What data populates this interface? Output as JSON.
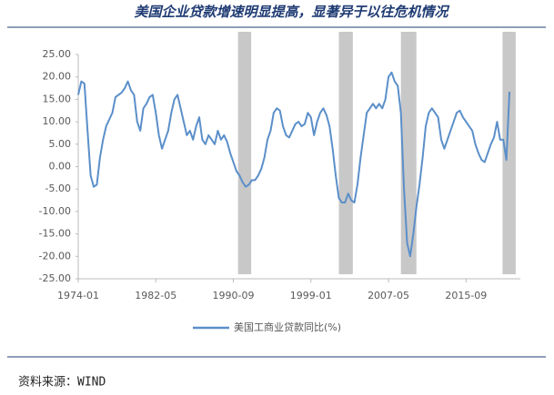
{
  "chart_data": {
    "type": "line",
    "title": "美国企业贷款增速明显提高，显著异于以往危机情况",
    "source": "资料来源：WIND",
    "x": [
      "1974-01",
      "1974-05",
      "1974-09",
      "1975-01",
      "1975-05",
      "1975-09",
      "1976-01",
      "1976-05",
      "1976-09",
      "1977-01",
      "1977-05",
      "1977-09",
      "1978-01",
      "1978-05",
      "1978-09",
      "1979-01",
      "1979-05",
      "1979-09",
      "1980-01",
      "1980-05",
      "1980-09",
      "1981-01",
      "1981-05",
      "1981-09",
      "1982-01",
      "1982-05",
      "1982-09",
      "1983-01",
      "1983-05",
      "1983-09",
      "1984-01",
      "1984-05",
      "1984-09",
      "1985-01",
      "1985-05",
      "1985-09",
      "1986-01",
      "1986-05",
      "1986-09",
      "1987-01",
      "1987-05",
      "1987-09",
      "1988-01",
      "1988-05",
      "1988-09",
      "1989-01",
      "1989-05",
      "1989-09",
      "1990-01",
      "1990-05",
      "1990-09",
      "1991-01",
      "1991-05",
      "1991-09",
      "1992-01",
      "1992-05",
      "1992-09",
      "1993-01",
      "1993-05",
      "1993-09",
      "1994-01",
      "1994-05",
      "1994-09",
      "1995-01",
      "1995-05",
      "1995-09",
      "1996-01",
      "1996-05",
      "1996-09",
      "1997-01",
      "1997-05",
      "1997-09",
      "1998-01",
      "1998-05",
      "1998-09",
      "1999-01",
      "1999-05",
      "1999-09",
      "2000-01",
      "2000-05",
      "2000-09",
      "2001-01",
      "2001-05",
      "2001-09",
      "2002-01",
      "2002-05",
      "2002-09",
      "2003-01",
      "2003-05",
      "2003-09",
      "2004-01",
      "2004-05",
      "2004-09",
      "2005-01",
      "2005-05",
      "2005-09",
      "2006-01",
      "2006-05",
      "2006-09",
      "2007-01",
      "2007-05",
      "2007-09",
      "2008-01",
      "2008-05",
      "2008-09",
      "2009-01",
      "2009-05",
      "2009-09",
      "2010-01",
      "2010-05",
      "2010-09",
      "2011-01",
      "2011-05",
      "2011-09",
      "2012-01",
      "2012-05",
      "2012-09",
      "2013-01",
      "2013-05",
      "2013-09",
      "2014-01",
      "2014-05",
      "2014-09",
      "2015-01",
      "2015-05",
      "2015-09",
      "2016-01",
      "2016-05",
      "2016-09",
      "2017-01",
      "2017-05",
      "2017-09",
      "2018-01",
      "2018-05",
      "2018-09",
      "2019-01",
      "2019-05",
      "2019-09",
      "2020-01",
      "2020-05"
    ],
    "series": [
      {
        "name": "美国工商业贷款同比(%)",
        "color": "#5b8fc9",
        "values": [
          16,
          19,
          18.5,
          8,
          -2,
          -4.5,
          -4,
          2,
          6,
          9,
          10.5,
          12,
          15.5,
          16,
          16.5,
          17.5,
          19,
          17,
          16,
          10,
          8,
          13,
          14,
          15.5,
          16,
          12,
          7,
          4,
          6,
          8,
          12,
          15,
          16,
          13,
          10,
          7,
          8,
          6,
          9,
          11,
          6,
          5,
          7,
          6,
          5,
          8,
          6,
          7,
          5.5,
          3,
          1,
          -1,
          -2,
          -3.5,
          -4.5,
          -4,
          -3,
          -3,
          -2,
          -0.5,
          2,
          6,
          8,
          12,
          13,
          12.5,
          9,
          7,
          6.5,
          8,
          9.5,
          10,
          9,
          9.5,
          12,
          11,
          7,
          10,
          12,
          13,
          11.5,
          9,
          4,
          -2,
          -7,
          -8,
          -8,
          -6,
          -7.5,
          -8,
          -4,
          2,
          7,
          12,
          13,
          14,
          13,
          14,
          13,
          15,
          20,
          21,
          19,
          18,
          12,
          -5,
          -17,
          -20,
          -15,
          -9,
          -4,
          2,
          9,
          12,
          13,
          12,
          11,
          6,
          4,
          6,
          8,
          10,
          12,
          12.5,
          11,
          10,
          9,
          8,
          5,
          3,
          1.5,
          1,
          3,
          5,
          6.5,
          10,
          6,
          6,
          1.5,
          16.7
        ]
      }
    ],
    "shaded": [
      [
        "1991-03",
        "1992-08"
      ],
      [
        "2002-01",
        "2003-07"
      ],
      [
        "2008-09",
        "2010-05"
      ],
      [
        "2019-08",
        "2021-01"
      ]
    ],
    "xlim": [
      "1974-01",
      "2021-07"
    ],
    "xticks": [
      "1974-01",
      "1982-05",
      "1990-09",
      "1999-01",
      "2007-05",
      "2015-09"
    ],
    "ylim": [
      -25,
      25
    ],
    "yticks": [
      {
        "value": -25,
        "label": "-25.00"
      },
      {
        "value": -20,
        "label": "-20.00"
      },
      {
        "value": -15,
        "label": "-15.00"
      },
      {
        "value": -10,
        "label": "-10.00"
      },
      {
        "value": -5,
        "label": "-5.00"
      },
      {
        "value": 0,
        "label": "0.00"
      },
      {
        "value": 5,
        "label": "5.00"
      },
      {
        "value": 10,
        "label": "10.00"
      },
      {
        "value": 15,
        "label": "15.00"
      },
      {
        "value": 20,
        "label": "20.00"
      },
      {
        "value": 25,
        "label": "25.00"
      }
    ]
  }
}
